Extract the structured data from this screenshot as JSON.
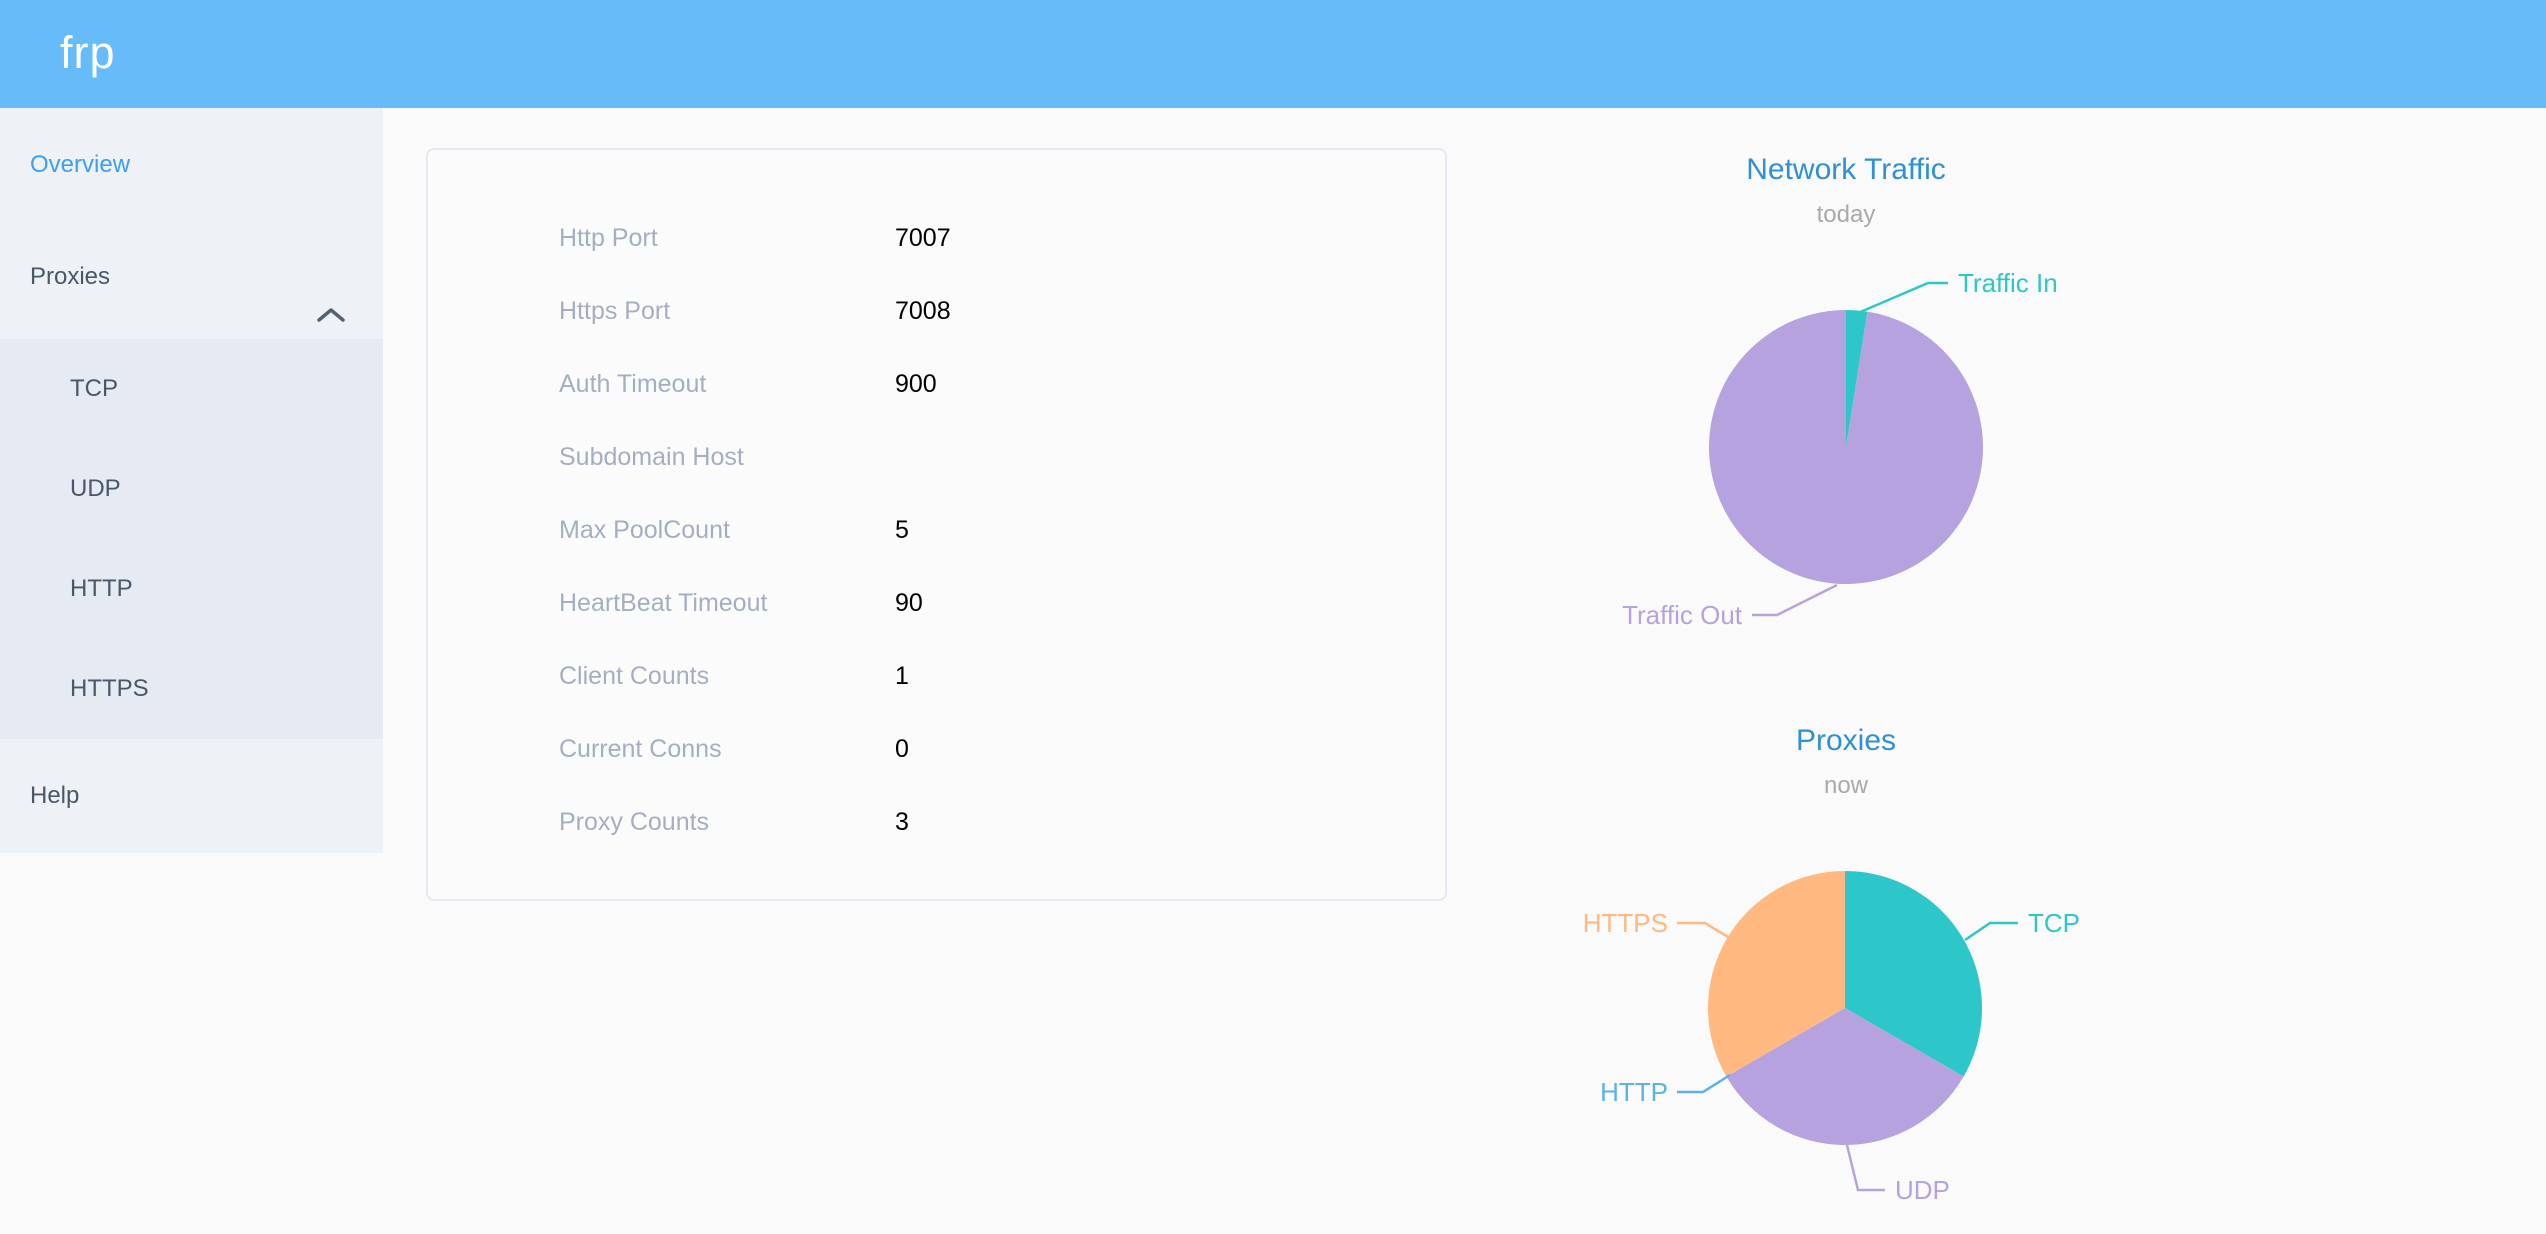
{
  "header": {
    "logo": "frp"
  },
  "sidebar": {
    "overview_label": "Overview",
    "proxies_label": "Proxies",
    "proxy_types": [
      "TCP",
      "UDP",
      "HTTP",
      "HTTPS"
    ],
    "help_label": "Help"
  },
  "server_info": {
    "rows": [
      {
        "label": "Http Port",
        "value": "7007"
      },
      {
        "label": "Https Port",
        "value": "7008"
      },
      {
        "label": "Auth Timeout",
        "value": "900"
      },
      {
        "label": "Subdomain Host",
        "value": ""
      },
      {
        "label": "Max PoolCount",
        "value": "5"
      },
      {
        "label": "HeartBeat Timeout",
        "value": "90"
      },
      {
        "label": "Client Counts",
        "value": "1"
      },
      {
        "label": "Current Conns",
        "value": "0"
      },
      {
        "label": "Proxy Counts",
        "value": "3"
      }
    ]
  },
  "chart_data": [
    {
      "type": "pie",
      "title": "Network Traffic",
      "subtitle": "today",
      "legend_position": "none",
      "slices": [
        {
          "name": "Traffic In",
          "value": 2.5,
          "color": "#2ec7c9"
        },
        {
          "name": "Traffic Out",
          "value": 97.5,
          "color": "#b6a2de"
        }
      ]
    },
    {
      "type": "pie",
      "title": "Proxies",
      "subtitle": "now",
      "legend_position": "none",
      "slices": [
        {
          "name": "TCP",
          "value": 1,
          "color": "#2ec7c9"
        },
        {
          "name": "UDP",
          "value": 1,
          "color": "#b6a2de"
        },
        {
          "name": "HTTP",
          "value": 0,
          "color": "#5ab1ef"
        },
        {
          "name": "HTTPS",
          "value": 1,
          "color": "#ffb980"
        }
      ]
    }
  ],
  "colors": {
    "header_bg": "#66bbf9",
    "sidebar_bg": "#eef1f6",
    "submenu_bg": "#e6eaf2",
    "sidebar_text": "#48576a",
    "active_item": "#3b9ff8",
    "page_bg": "#fafafa",
    "card_border": "#e8e8f4",
    "label_gray": "#a4aec2",
    "chart_title_blue": "#2e90d8",
    "chart_subtitle_gray": "#a9a9a9",
    "pie_teal": "#2ec7c9",
    "pie_purple": "#b6a2de",
    "pie_blue": "#5ab1ef",
    "pie_orange": "#ffb980"
  }
}
